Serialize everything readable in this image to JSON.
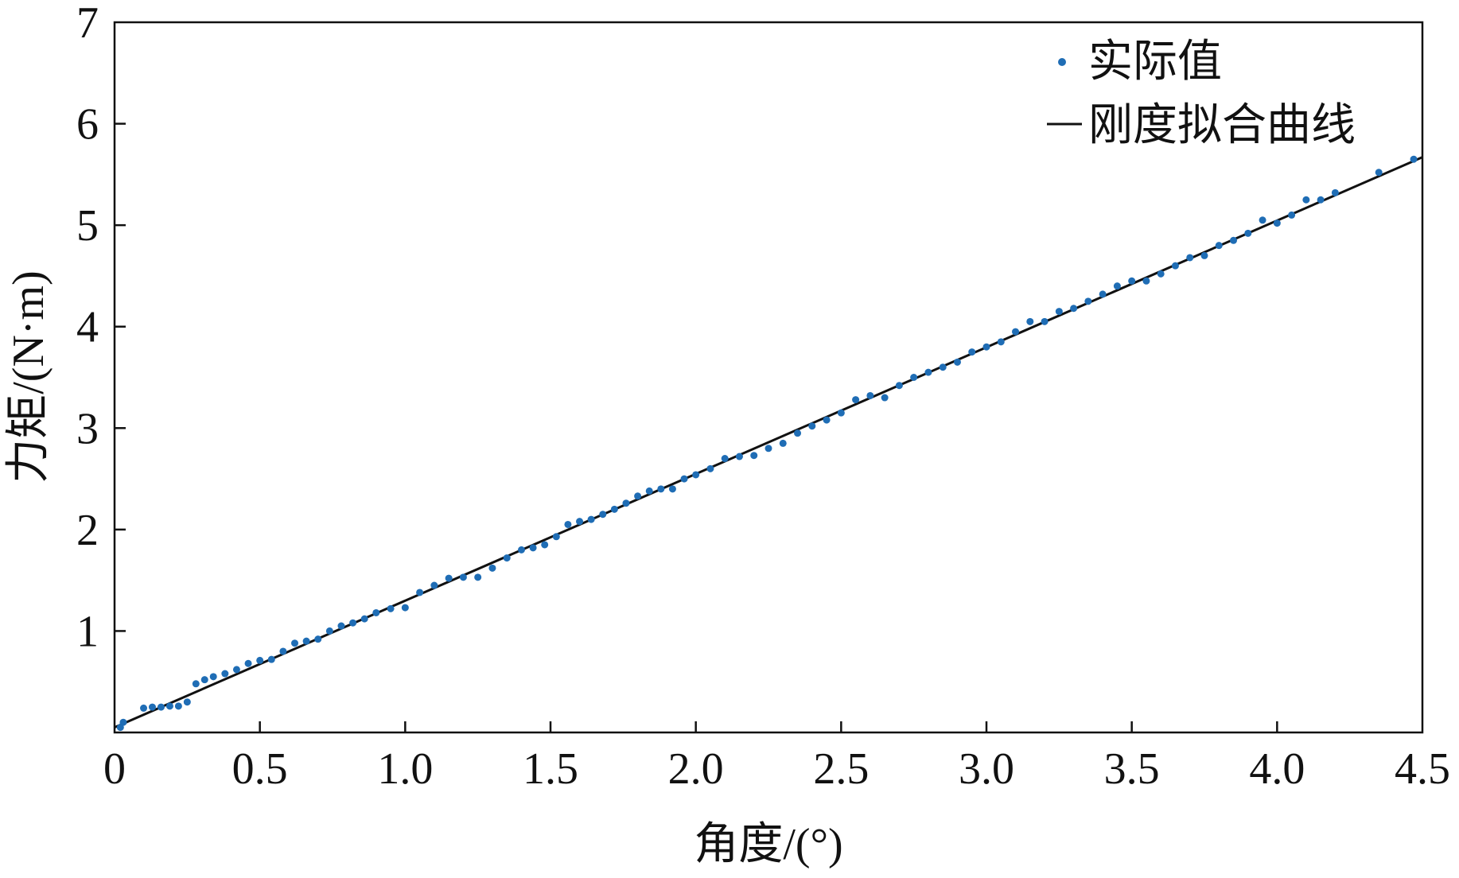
{
  "chart_data": {
    "type": "scatter",
    "xlabel": "角度/(°)",
    "ylabel": "力矩/(N·m)",
    "xlim": [
      0,
      4.5
    ],
    "ylim": [
      0,
      7
    ],
    "x_ticks": [
      "0",
      "0.5",
      "1.0",
      "1.5",
      "2.0",
      "2.5",
      "3.0",
      "3.5",
      "4.0",
      "4.5"
    ],
    "y_ticks": [
      "1",
      "2",
      "3",
      "4",
      "5",
      "6",
      "7"
    ],
    "legend": {
      "position": "top-right",
      "entries": [
        "实际值",
        "刚度拟合曲线"
      ]
    },
    "colors": {
      "points": "#1f6db5",
      "line": "#111111"
    },
    "series": [
      {
        "name": "实际值",
        "kind": "scatter",
        "x": [
          0.02,
          0.03,
          0.1,
          0.13,
          0.16,
          0.19,
          0.22,
          0.25,
          0.28,
          0.31,
          0.34,
          0.38,
          0.42,
          0.46,
          0.5,
          0.54,
          0.58,
          0.62,
          0.66,
          0.7,
          0.74,
          0.78,
          0.82,
          0.86,
          0.9,
          0.95,
          1.0,
          1.05,
          1.1,
          1.15,
          1.2,
          1.25,
          1.3,
          1.35,
          1.4,
          1.44,
          1.48,
          1.52,
          1.56,
          1.6,
          1.64,
          1.68,
          1.72,
          1.76,
          1.8,
          1.84,
          1.88,
          1.92,
          1.96,
          2.0,
          2.05,
          2.1,
          2.15,
          2.2,
          2.25,
          2.3,
          2.35,
          2.4,
          2.45,
          2.5,
          2.55,
          2.6,
          2.65,
          2.7,
          2.75,
          2.8,
          2.85,
          2.9,
          2.95,
          3.0,
          3.05,
          3.1,
          3.15,
          3.2,
          3.25,
          3.3,
          3.35,
          3.4,
          3.45,
          3.5,
          3.55,
          3.6,
          3.65,
          3.7,
          3.75,
          3.8,
          3.85,
          3.9,
          3.95,
          4.0,
          4.05,
          4.1,
          4.15,
          4.2,
          4.35,
          4.47
        ],
        "y": [
          0.05,
          0.1,
          0.24,
          0.25,
          0.25,
          0.26,
          0.26,
          0.3,
          0.48,
          0.52,
          0.55,
          0.58,
          0.62,
          0.68,
          0.71,
          0.72,
          0.8,
          0.88,
          0.9,
          0.92,
          1.0,
          1.05,
          1.08,
          1.12,
          1.18,
          1.22,
          1.23,
          1.38,
          1.45,
          1.52,
          1.53,
          1.53,
          1.62,
          1.72,
          1.8,
          1.82,
          1.85,
          1.93,
          2.05,
          2.08,
          2.1,
          2.15,
          2.2,
          2.26,
          2.33,
          2.38,
          2.4,
          2.4,
          2.5,
          2.54,
          2.6,
          2.7,
          2.72,
          2.73,
          2.8,
          2.85,
          2.95,
          3.02,
          3.08,
          3.15,
          3.28,
          3.32,
          3.3,
          3.42,
          3.5,
          3.55,
          3.6,
          3.65,
          3.75,
          3.8,
          3.85,
          3.95,
          4.05,
          4.05,
          4.15,
          4.18,
          4.25,
          4.32,
          4.4,
          4.45,
          4.45,
          4.52,
          4.6,
          4.68,
          4.7,
          4.8,
          4.85,
          4.92,
          5.05,
          5.02,
          5.1,
          5.25,
          5.25,
          5.32,
          5.52,
          5.65
        ]
      },
      {
        "name": "刚度拟合曲线",
        "kind": "line",
        "x": [
          0,
          4.5
        ],
        "y": [
          0.05,
          5.67
        ]
      }
    ]
  }
}
